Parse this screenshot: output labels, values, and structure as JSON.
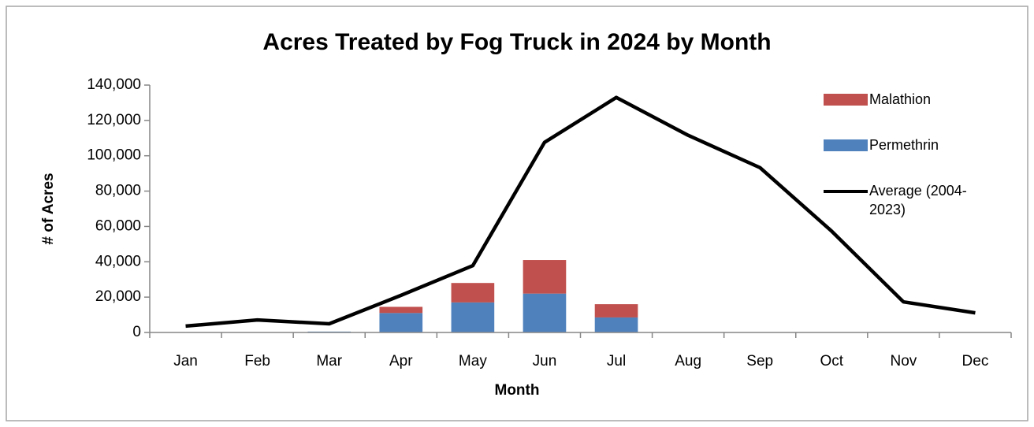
{
  "chart_data": {
    "type": "bar",
    "title": "Acres Treated by Fog Truck in 2024 by Month",
    "x_label": "Month",
    "y_label": "# of Acres",
    "categories": [
      "Jan",
      "Feb",
      "Mar",
      "Apr",
      "May",
      "Jun",
      "Jul",
      "Aug",
      "Sep",
      "Oct",
      "Nov",
      "Dec"
    ],
    "stacked": true,
    "series": [
      {
        "name": "Malathion",
        "type": "bar",
        "color": "#c0504d",
        "values": [
          0,
          0,
          0,
          3500,
          11000,
          19000,
          7500,
          0,
          0,
          0,
          0,
          0
        ]
      },
      {
        "name": "Permethrin",
        "type": "bar",
        "color": "#4f81bd",
        "values": [
          0,
          0,
          500,
          11000,
          17000,
          22000,
          8500,
          0,
          0,
          0,
          0,
          0
        ]
      },
      {
        "name": "Average (2004-2023)",
        "type": "line",
        "color": "#000000",
        "values": [
          3600,
          7100,
          4900,
          21000,
          37800,
          107600,
          133000,
          111600,
          93300,
          57300,
          17300,
          11100
        ]
      }
    ],
    "ylim": [
      0,
      140000
    ],
    "yticks": [
      0,
      {
        "value": 20000,
        "label": "20,000"
      },
      {
        "value": 40000,
        "label": "40,000"
      },
      {
        "value": 60000,
        "label": "60,000"
      },
      {
        "value": 80000,
        "label": "80,000"
      },
      {
        "value": 100000,
        "label": "100,000"
      },
      {
        "value": 120000,
        "label": "120,000"
      },
      {
        "value": 140000,
        "label": "140,000"
      }
    ],
    "grid": false,
    "legend": "right"
  }
}
